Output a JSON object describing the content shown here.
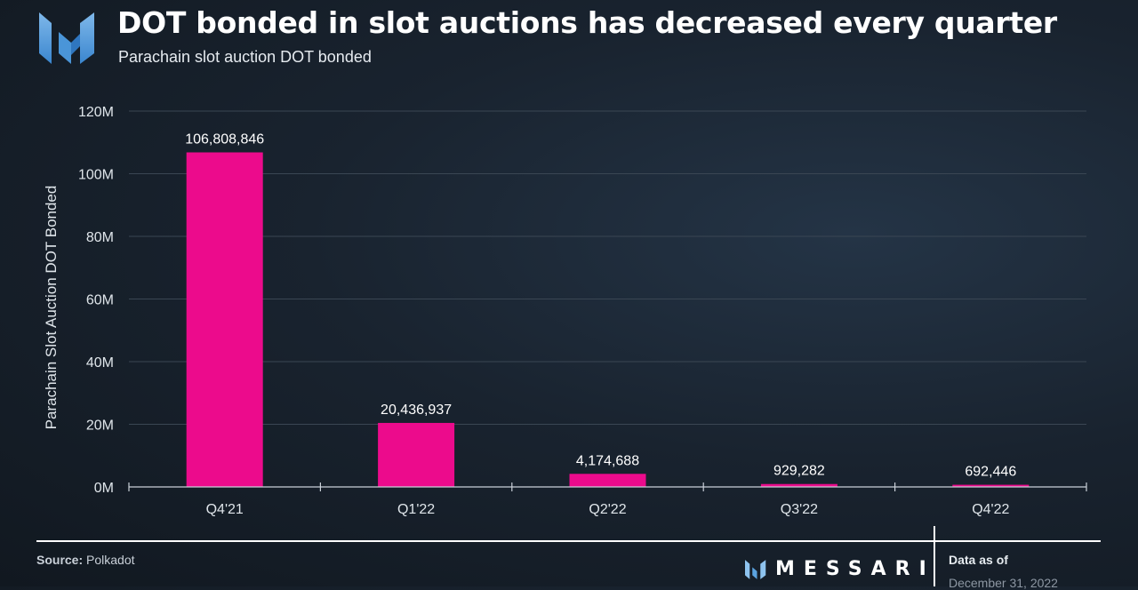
{
  "header": {
    "title": "DOT bonded in slot auctions has decreased every quarter",
    "subtitle": "Parachain slot auction DOT bonded"
  },
  "chart_data": {
    "type": "bar",
    "categories": [
      "Q4'21",
      "Q1'22",
      "Q2'22",
      "Q3'22",
      "Q4'22"
    ],
    "values": [
      106808846,
      20436937,
      4174688,
      929282,
      692446
    ],
    "data_labels": [
      "106,808,846",
      "20,436,937",
      "4,174,688",
      "929,282",
      "692,446"
    ],
    "ylabel": "Parachain Slot Auction DOT Bonded",
    "ylim": [
      0,
      120000000
    ],
    "yticks": [
      0,
      20000000,
      40000000,
      60000000,
      80000000,
      100000000,
      120000000
    ],
    "ytick_labels": [
      "0M",
      "20M",
      "40M",
      "60M",
      "80M",
      "100M",
      "120M"
    ],
    "grid": true,
    "colors": {
      "bar": "#ec0b8c",
      "grid": "#3a4653",
      "axis": "#c9d0d8",
      "text": "#dfe5ea"
    }
  },
  "footer": {
    "source_label": "Source:",
    "source_value": "Polkadot",
    "brand": "MESSARI",
    "as_of_label": "Data as of",
    "as_of_date": "December 31, 2022"
  },
  "icons": {
    "logo": "messari-logo-icon",
    "brand_mark": "messari-mark-icon"
  }
}
